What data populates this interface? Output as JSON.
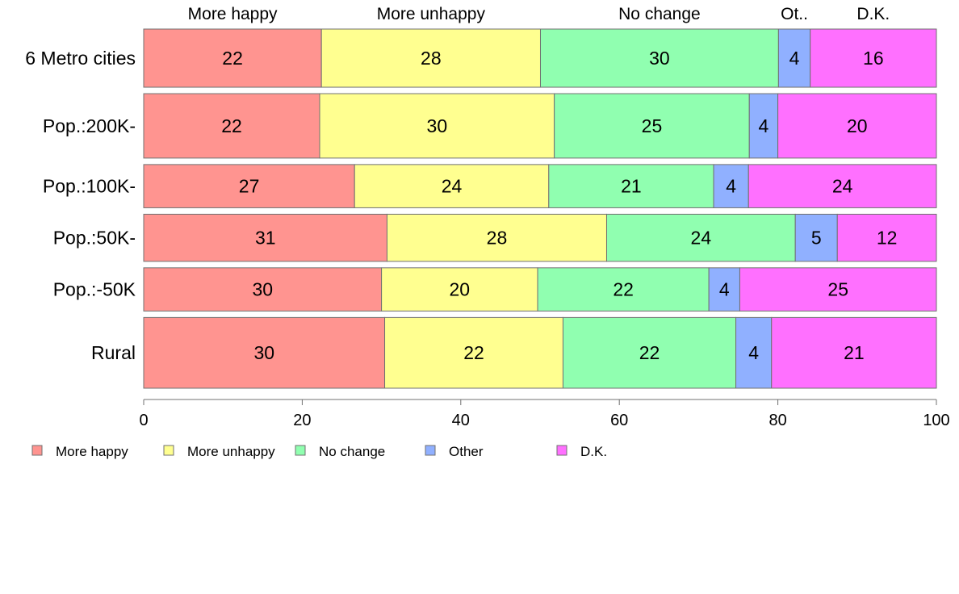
{
  "chart_data": {
    "type": "bar",
    "orientation": "horizontal",
    "stacked": true,
    "categories": [
      "6 Metro cities",
      "Pop.:200K-",
      "Pop.:100K-",
      "Pop.:50K-",
      "Pop.:-50K",
      "Rural"
    ],
    "series": [
      {
        "name": "More happy",
        "top_label": "More happy",
        "color": "#ff9490",
        "values": [
          22.4,
          22.2,
          26.6,
          30.7,
          30.0,
          30.4
        ]
      },
      {
        "name": "More unhappy",
        "top_label": "More unhappy",
        "color": "#ffff90",
        "values": [
          27.6,
          29.6,
          24.5,
          27.7,
          19.7,
          22.5
        ]
      },
      {
        "name": "No change",
        "top_label": "No change",
        "color": "#90ffb0",
        "values": [
          30.0,
          24.6,
          20.8,
          23.8,
          21.6,
          21.8
        ]
      },
      {
        "name": "Other",
        "top_label": "Ot..",
        "color": "#90b0ff",
        "values": [
          4.0,
          3.6,
          4.4,
          5.3,
          3.9,
          4.5
        ]
      },
      {
        "name": "D.K.",
        "top_label": "D.K.",
        "color": "#ff70ff",
        "values": [
          15.9,
          20.0,
          23.7,
          12.5,
          24.8,
          20.8
        ]
      }
    ],
    "data_labels": [
      [
        "22",
        "28",
        "30",
        "4",
        "16"
      ],
      [
        "22",
        "30",
        "25",
        "4",
        "20"
      ],
      [
        "27",
        "24",
        "21",
        "4",
        "24"
      ],
      [
        "31",
        "28",
        "24",
        "5",
        "12"
      ],
      [
        "30",
        "20",
        "22",
        "4",
        "25"
      ],
      [
        "30",
        "22",
        "22",
        "4",
        "21"
      ]
    ],
    "bar_widths_relative": [
      74,
      82,
      55,
      60,
      55,
      90
    ],
    "xlim": [
      0,
      100
    ],
    "xticks": [
      0,
      20,
      40,
      60,
      80,
      100
    ],
    "grid": false,
    "legend_position": "bottom-left"
  }
}
